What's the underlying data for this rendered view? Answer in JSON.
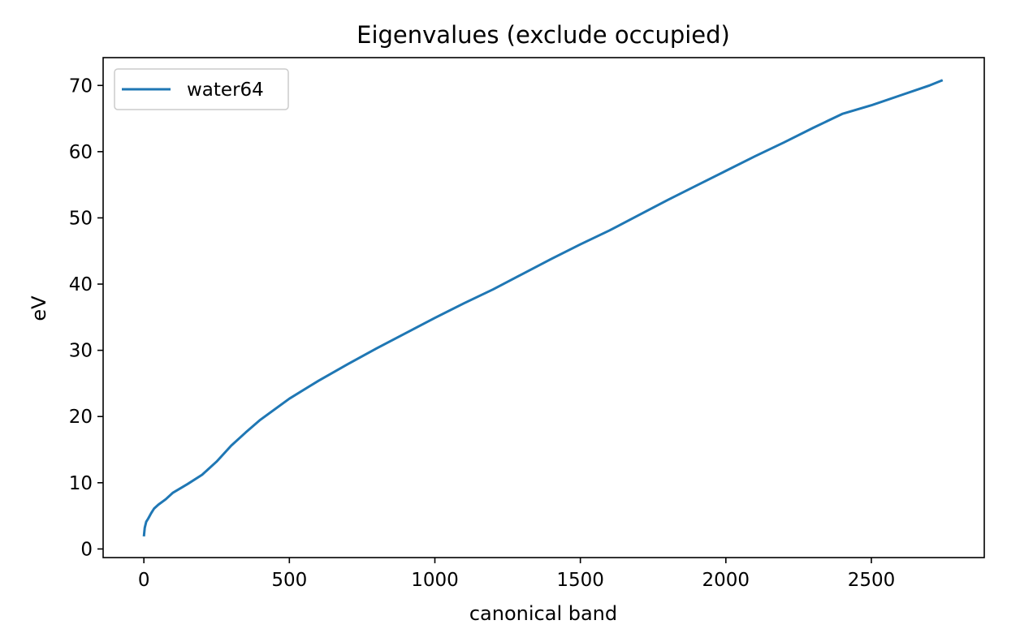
{
  "chart_data": {
    "type": "line",
    "title": "Eigenvalues (exclude occupied)",
    "xlabel": "canonical band",
    "ylabel": "eV",
    "xlim": [
      -140,
      2888
    ],
    "ylim": [
      -1.3,
      74.2
    ],
    "xticks": [
      0,
      500,
      1000,
      1500,
      2000,
      2500
    ],
    "yticks": [
      0,
      10,
      20,
      30,
      40,
      50,
      60,
      70
    ],
    "grid": false,
    "legend": {
      "position": "top-left",
      "entries": [
        "water64"
      ]
    },
    "series": [
      {
        "name": "water64",
        "color": "#1f77b4",
        "points": [
          [
            0,
            1.9
          ],
          [
            3,
            3.2
          ],
          [
            8,
            4.1
          ],
          [
            15,
            4.6
          ],
          [
            25,
            5.4
          ],
          [
            35,
            6.1
          ],
          [
            50,
            6.7
          ],
          [
            75,
            7.5
          ],
          [
            100,
            8.5
          ],
          [
            150,
            9.8
          ],
          [
            200,
            11.2
          ],
          [
            250,
            13.2
          ],
          [
            300,
            15.6
          ],
          [
            350,
            17.6
          ],
          [
            400,
            19.5
          ],
          [
            500,
            22.7
          ],
          [
            600,
            25.4
          ],
          [
            700,
            27.9
          ],
          [
            800,
            30.3
          ],
          [
            900,
            32.6
          ],
          [
            1000,
            34.9
          ],
          [
            1100,
            37.1
          ],
          [
            1200,
            39.2
          ],
          [
            1300,
            41.5
          ],
          [
            1400,
            43.8
          ],
          [
            1500,
            46.0
          ],
          [
            1600,
            48.1
          ],
          [
            1700,
            50.4
          ],
          [
            1800,
            52.7
          ],
          [
            1900,
            54.9
          ],
          [
            2000,
            57.1
          ],
          [
            2100,
            59.3
          ],
          [
            2200,
            61.4
          ],
          [
            2300,
            63.6
          ],
          [
            2400,
            65.7
          ],
          [
            2500,
            67.0
          ],
          [
            2600,
            68.5
          ],
          [
            2700,
            70.0
          ],
          [
            2745,
            70.8
          ]
        ]
      }
    ]
  }
}
